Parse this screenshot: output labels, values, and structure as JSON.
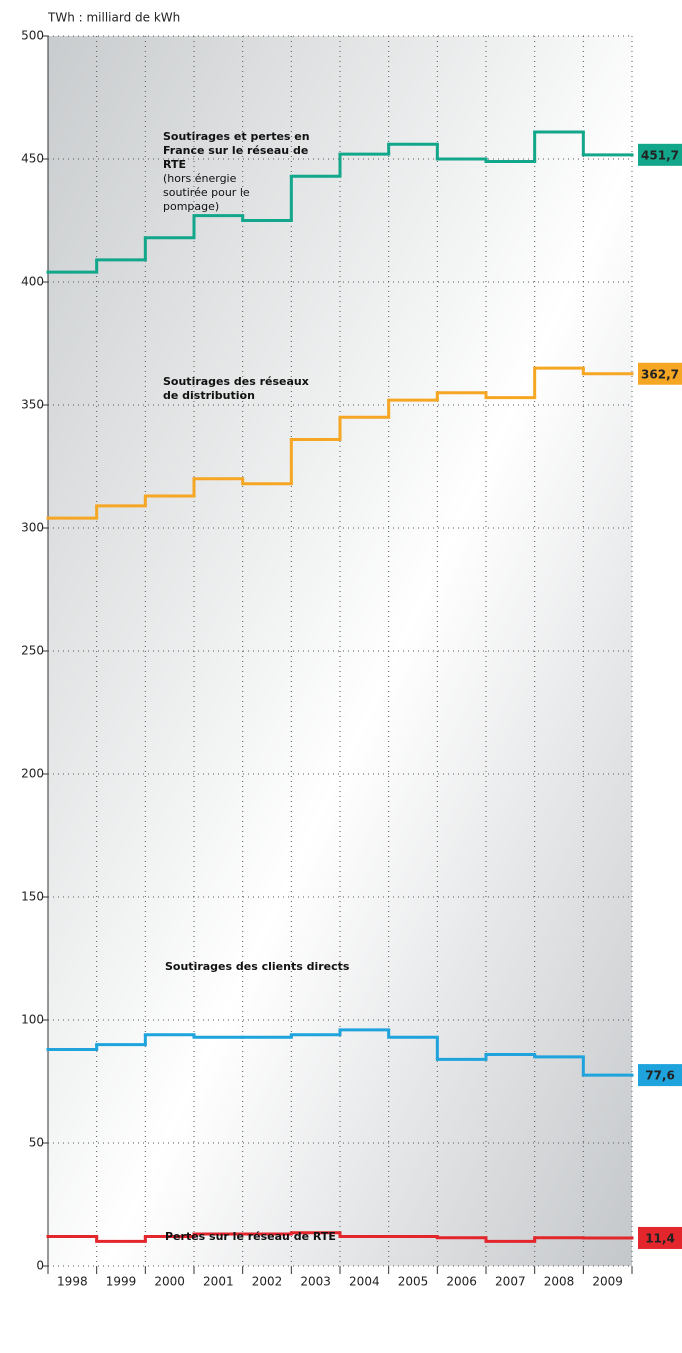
{
  "chart_data": {
    "type": "step",
    "y_label": "TWh : milliard de kWh",
    "categories": [
      "1998",
      "1999",
      "2000",
      "2001",
      "2002",
      "2003",
      "2004",
      "2005",
      "2006",
      "2007",
      "2008",
      "2009"
    ],
    "ylim": [
      0,
      500
    ],
    "yticks": [
      0,
      50,
      100,
      150,
      200,
      250,
      300,
      350,
      400,
      450,
      500
    ],
    "grid": true,
    "series": [
      {
        "name": "Soutirages et pertes en France sur le réseau de RTE",
        "note": "(hors énergie soutirée pour le pompage)",
        "color": "#12a68a",
        "values": [
          404,
          409,
          418,
          427,
          425,
          443,
          452,
          456,
          450,
          449,
          461,
          451.7
        ],
        "value_labels": [
          null,
          null,
          null,
          null,
          null,
          null,
          null,
          null,
          null,
          null,
          null,
          "451,7"
        ]
      },
      {
        "name": "Soutirages des réseaux de distribution",
        "color": "#f5a623",
        "values": [
          304,
          309,
          313,
          320,
          318,
          336,
          345,
          352,
          355,
          353,
          365,
          362.7
        ],
        "value_labels": [
          null,
          null,
          null,
          null,
          null,
          null,
          null,
          null,
          null,
          null,
          null,
          "362,7"
        ]
      },
      {
        "name": "Soutirages des clients directs",
        "color": "#1ea3dd",
        "values": [
          88,
          90,
          94,
          93,
          93,
          94,
          96,
          93,
          84,
          86,
          85,
          77.6
        ],
        "value_labels": [
          null,
          null,
          null,
          null,
          null,
          null,
          null,
          null,
          null,
          null,
          null,
          "77,6"
        ]
      },
      {
        "name": "Pertes sur le réseau de RTE",
        "color": "#e2262c",
        "values": [
          12,
          10,
          12,
          13,
          13,
          13.5,
          12,
          12,
          11.5,
          10,
          11.5,
          11.4
        ],
        "value_labels": [
          null,
          null,
          null,
          null,
          null,
          null,
          null,
          null,
          null,
          null,
          null,
          "11,4"
        ]
      }
    ]
  }
}
